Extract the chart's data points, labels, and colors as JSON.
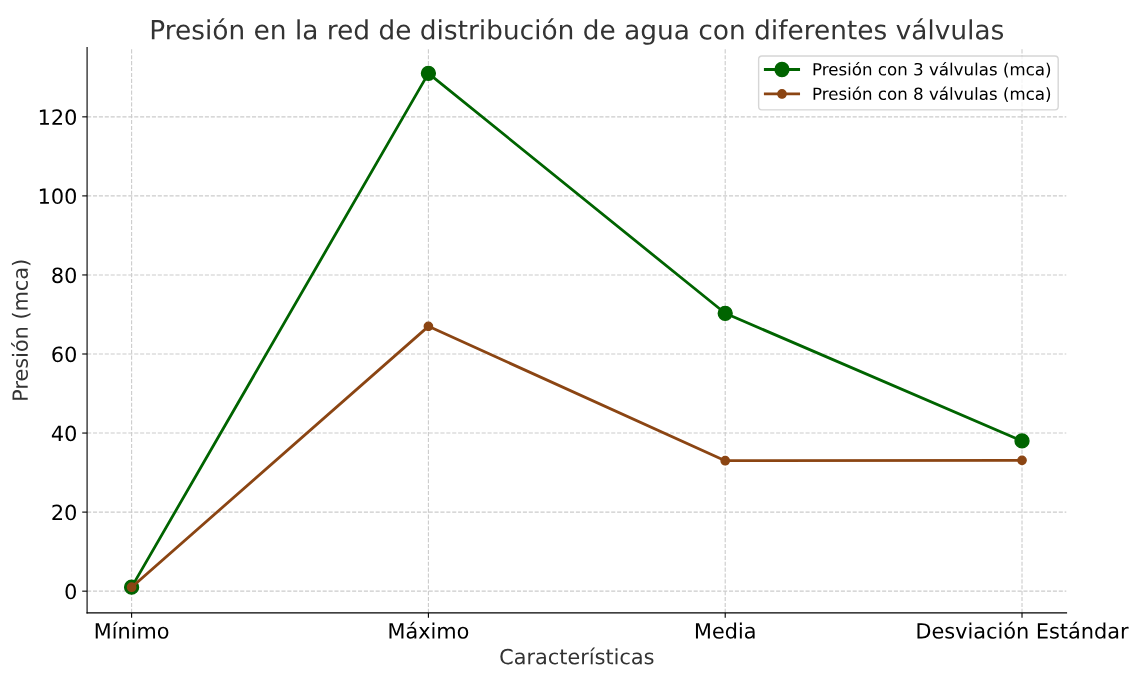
{
  "chart_data": {
    "type": "line",
    "title": "Presión en la red de distribución de agua con diferentes válvulas",
    "xlabel": "Características",
    "ylabel": "Presión (mca)",
    "categories": [
      "Mínimo",
      "Máximo",
      "Media",
      "Desviación Estándar"
    ],
    "series": [
      {
        "name": "Presión con 3 válvulas (mca)",
        "color": "#006400",
        "values": [
          1,
          131,
          70.3,
          38
        ]
      },
      {
        "name": "Presión con 8 válvulas (mca)",
        "color": "#8b4513",
        "values": [
          1,
          67,
          33,
          33.1
        ]
      }
    ],
    "ylim": [
      -5.5,
      137.5
    ],
    "yticks": [
      0,
      20,
      40,
      60,
      80,
      100,
      120
    ],
    "grid": true,
    "legend": "top right",
    "marker": "circle",
    "line_style": "solid"
  }
}
